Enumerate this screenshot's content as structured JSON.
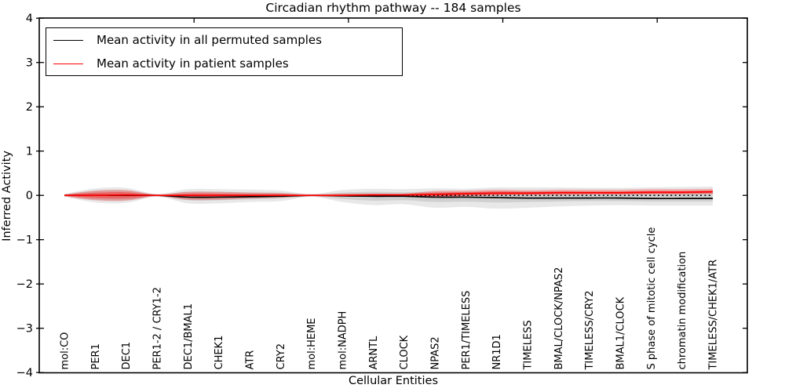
{
  "title": "Circadian rhythm pathway -- 184 samples",
  "axes": {
    "xlabel": "Cellular Entities",
    "ylabel": "Inferred Activity"
  },
  "legend": {
    "position": "upper left",
    "items": [
      {
        "label": "Mean activity in all permuted samples",
        "color": "#000000"
      },
      {
        "label": "Mean activity in patient samples",
        "color": "#ff0000"
      }
    ]
  },
  "colors": {
    "permuted_line": "#000000",
    "patient_line": "#ff0000",
    "permuted_band": "#000000",
    "patient_band": "#ff0000",
    "background": "#ffffff",
    "frame": "#000000"
  },
  "chart_data": {
    "type": "line",
    "title": "Circadian rhythm pathway -- 184 samples",
    "xlabel": "Cellular Entities",
    "ylabel": "Inferred Activity",
    "ylim": [
      -4,
      4
    ],
    "yticks": [
      4,
      3,
      2,
      1,
      0,
      -1,
      -2,
      -3,
      -4
    ],
    "ytick_labels": [
      "4",
      "3",
      "2",
      "1",
      "0",
      "−1",
      "−2",
      "−3",
      "−4"
    ],
    "grid": false,
    "legend_position": "upper left",
    "top_axis_tick_positions": [
      4.2,
      9.2,
      14.2,
      19.2
    ],
    "categories": [
      "mol:CO",
      "PER1",
      "DEC1",
      "PER1-2 / CRY1-2",
      "DEC1/BMAL1",
      "CHEK1",
      "ATR",
      "CRY2",
      "mol:HEME",
      "mol:NADPH",
      "ARNTL",
      "CLOCK",
      "NPAS2",
      "PER1/TIMELESS",
      "NR1D1",
      "TIMELESS",
      "BMAL/CLOCK/NPAS2",
      "TIMELESS/CRY2",
      "BMAL1/CLOCK",
      "S phase of mitotic cell cycle",
      "chromatin modification",
      "TIMELESS/CHEK1/ATR"
    ],
    "series": [
      {
        "name": "Mean activity in all permuted samples",
        "color": "#000000",
        "style": "solid",
        "values": [
          0.0,
          0.0,
          0.0,
          0.0,
          -0.04,
          -0.04,
          -0.03,
          -0.02,
          0.0,
          -0.01,
          -0.02,
          -0.02,
          -0.04,
          -0.04,
          -0.05,
          -0.06,
          -0.06,
          -0.06,
          -0.06,
          -0.07,
          -0.07,
          -0.07
        ]
      },
      {
        "name": "Mean activity in patient samples",
        "color": "#ff0000",
        "style": "solid",
        "values": [
          0.0,
          0.0,
          0.01,
          0.0,
          0.0,
          0.0,
          0.0,
          0.0,
          0.0,
          0.0,
          0.01,
          0.01,
          0.02,
          0.04,
          0.05,
          0.05,
          0.06,
          0.06,
          0.06,
          0.07,
          0.07,
          0.08
        ]
      }
    ],
    "reference_line": {
      "y": 0,
      "style": "dotted",
      "color": "#000000"
    },
    "bands": [
      {
        "name": "permuted-range-outer",
        "color": "#000000",
        "opacity": 0.09,
        "upper": [
          0.03,
          0.16,
          0.17,
          0.03,
          0.14,
          0.14,
          0.13,
          0.11,
          0.03,
          0.12,
          0.15,
          0.14,
          0.16,
          0.15,
          0.18,
          0.18,
          0.18,
          0.17,
          0.17,
          0.18,
          0.19,
          0.2
        ],
        "lower": [
          -0.03,
          -0.16,
          -0.17,
          -0.03,
          -0.18,
          -0.18,
          -0.15,
          -0.13,
          -0.03,
          -0.15,
          -0.22,
          -0.2,
          -0.28,
          -0.26,
          -0.3,
          -0.28,
          -0.25,
          -0.23,
          -0.22,
          -0.23,
          -0.23,
          -0.23
        ]
      },
      {
        "name": "permuted-range-inner",
        "color": "#000000",
        "opacity": 0.1,
        "upper": [
          0.02,
          0.1,
          0.11,
          0.02,
          0.08,
          0.08,
          0.07,
          0.06,
          0.02,
          0.06,
          0.08,
          0.07,
          0.08,
          0.08,
          0.09,
          0.09,
          0.09,
          0.08,
          0.08,
          0.09,
          0.09,
          0.1
        ],
        "lower": [
          -0.02,
          -0.1,
          -0.11,
          -0.02,
          -0.11,
          -0.11,
          -0.09,
          -0.07,
          -0.02,
          -0.08,
          -0.12,
          -0.11,
          -0.15,
          -0.14,
          -0.16,
          -0.15,
          -0.14,
          -0.13,
          -0.13,
          -0.14,
          -0.14,
          -0.14
        ]
      },
      {
        "name": "patient-range-outer",
        "color": "#ff0000",
        "opacity": 0.25,
        "upper": [
          0.02,
          0.11,
          0.12,
          0.02,
          0.08,
          0.08,
          0.06,
          0.05,
          0.02,
          0.04,
          0.04,
          0.04,
          0.1,
          0.11,
          0.13,
          0.12,
          0.13,
          0.13,
          0.13,
          0.14,
          0.14,
          0.15
        ],
        "lower": [
          -0.02,
          -0.11,
          -0.12,
          -0.02,
          -0.1,
          -0.1,
          -0.07,
          -0.05,
          -0.02,
          -0.03,
          -0.03,
          -0.03,
          -0.05,
          -0.02,
          0.0,
          0.01,
          0.01,
          0.02,
          0.02,
          0.02,
          0.02,
          0.03
        ]
      },
      {
        "name": "patient-range-inner",
        "color": "#ff0000",
        "opacity": 0.35,
        "upper": [
          0.01,
          0.06,
          0.07,
          0.01,
          0.04,
          0.04,
          0.03,
          0.03,
          0.01,
          0.02,
          0.03,
          0.03,
          0.06,
          0.07,
          0.09,
          0.08,
          0.09,
          0.09,
          0.09,
          0.1,
          0.1,
          0.11
        ],
        "lower": [
          -0.01,
          -0.06,
          -0.07,
          -0.01,
          -0.05,
          -0.05,
          -0.04,
          -0.03,
          -0.01,
          -0.02,
          -0.01,
          -0.01,
          -0.02,
          0.0,
          0.02,
          0.02,
          0.03,
          0.03,
          0.03,
          0.04,
          0.04,
          0.05
        ]
      }
    ]
  }
}
